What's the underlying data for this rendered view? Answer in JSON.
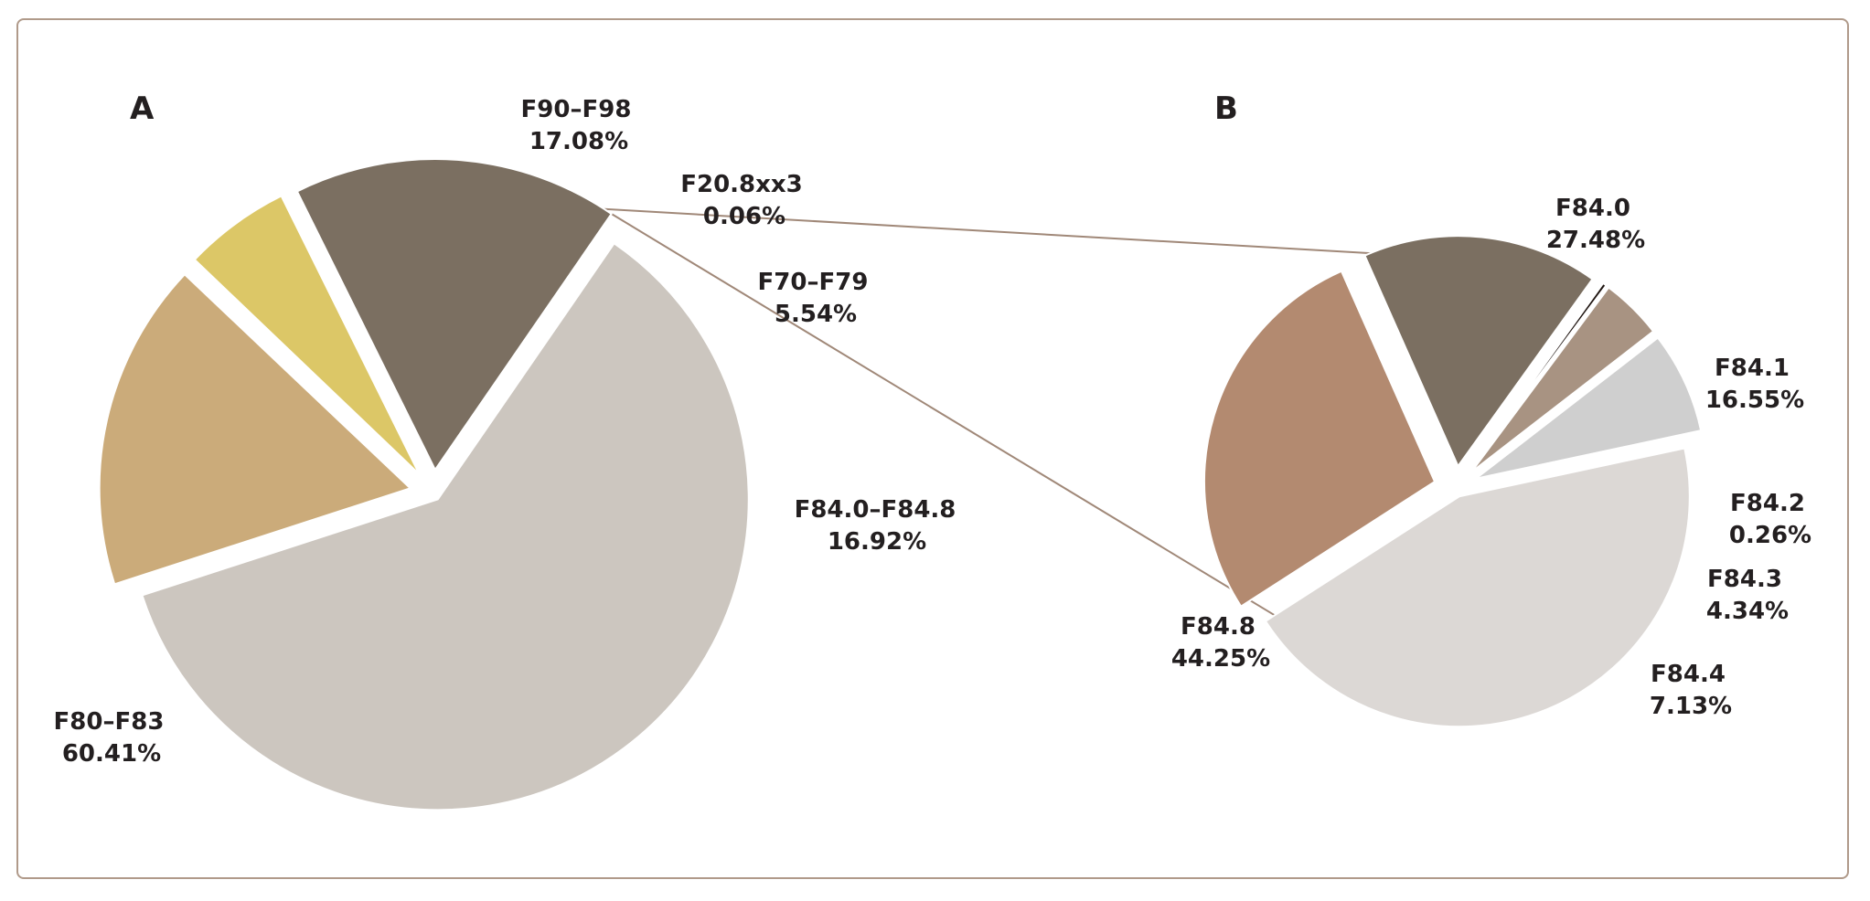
{
  "chart_data": [
    {
      "type": "pie",
      "panel": "A",
      "slices": [
        {
          "label": "F90–F98",
          "value": 17.08,
          "value_text": "17.08%",
          "color": "#cbab7a"
        },
        {
          "label": "F20.8xx3",
          "value": 0.06,
          "value_text": "0.06%",
          "color": "#cbab7a"
        },
        {
          "label": "F70–F79",
          "value": 5.54,
          "value_text": "5.54%",
          "color": "#dcc767"
        },
        {
          "label": "F84.0–F84.8",
          "value": 16.92,
          "value_text": "16.92%",
          "color": "#7b6f61"
        },
        {
          "label": "F80–F83",
          "value": 60.41,
          "value_text": "60.41%",
          "color": "#ccc6bf"
        }
      ]
    },
    {
      "type": "pie",
      "panel": "B",
      "slices": [
        {
          "label": "F84.0",
          "value": 27.48,
          "value_text": "27.48%",
          "color": "#b38a70"
        },
        {
          "label": "F84.1",
          "value": 16.55,
          "value_text": "16.55%",
          "color": "#7b6f61"
        },
        {
          "label": "F84.2",
          "value": 0.26,
          "value_text": "0.26%",
          "color": "#1e1410"
        },
        {
          "label": "F84.3",
          "value": 4.34,
          "value_text": "4.34%",
          "color": "#a89382"
        },
        {
          "label": "F84.4",
          "value": 7.13,
          "value_text": "7.13%",
          "color": "#cfcfcf"
        },
        {
          "label": "F84.8",
          "value": 44.25,
          "value_text": "44.25%",
          "color": "#dcd8d5"
        }
      ]
    }
  ],
  "connector_color": "#a08878"
}
